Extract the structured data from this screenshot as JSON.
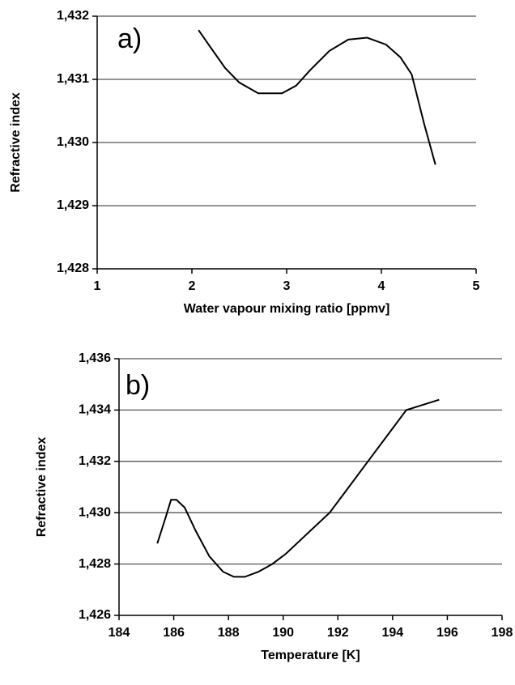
{
  "chart_data": [
    {
      "type": "line",
      "annotation": "a)",
      "xlabel": "Water vapour mixing ratio [ppmv]",
      "ylabel": "Refractive index",
      "x": [
        2.07,
        2.2,
        2.35,
        2.5,
        2.7,
        2.95,
        3.1,
        3.25,
        3.45,
        3.65,
        3.85,
        4.05,
        4.2,
        4.32,
        4.45,
        4.57
      ],
      "values": [
        1.43178,
        1.4315,
        1.43118,
        1.43095,
        1.43078,
        1.43078,
        1.4309,
        1.43115,
        1.43145,
        1.43163,
        1.43166,
        1.43155,
        1.43135,
        1.43108,
        1.4303,
        1.42965
      ],
      "color": "#000000",
      "xlim": [
        1,
        5
      ],
      "xticks": [
        1,
        2,
        3,
        4,
        5
      ],
      "ylim": [
        1.428,
        1.432
      ],
      "yticks": [
        {
          "value": 1.428,
          "label": "1,428"
        },
        {
          "value": 1.429,
          "label": "1,429"
        },
        {
          "value": 1.43,
          "label": "1,430"
        },
        {
          "value": 1.431,
          "label": "1,431"
        },
        {
          "value": 1.432,
          "label": "1,432"
        }
      ],
      "grid": true
    },
    {
      "type": "line",
      "annotation": "b)",
      "xlabel": "Temperature [K]",
      "ylabel": "Refractive index",
      "x": [
        185.4,
        185.7,
        185.9,
        186.1,
        186.4,
        186.8,
        187.3,
        187.8,
        188.2,
        188.6,
        189.1,
        189.6,
        190.1,
        190.8,
        191.7,
        192.4,
        193.1,
        193.8,
        194.5,
        195.1,
        195.7
      ],
      "values": [
        1.4288,
        1.4298,
        1.4305,
        1.4305,
        1.4302,
        1.4293,
        1.4283,
        1.4277,
        1.4275,
        1.4275,
        1.4277,
        1.428,
        1.4284,
        1.4291,
        1.43,
        1.431,
        1.432,
        1.433,
        1.434,
        1.4342,
        1.4344
      ],
      "color": "#000000",
      "xlim": [
        184,
        198
      ],
      "xticks": [
        184,
        186,
        188,
        190,
        192,
        194,
        196,
        198
      ],
      "ylim": [
        1.426,
        1.436
      ],
      "yticks": [
        {
          "value": 1.426,
          "label": "1,426"
        },
        {
          "value": 1.428,
          "label": "1,428"
        },
        {
          "value": 1.43,
          "label": "1,430"
        },
        {
          "value": 1.432,
          "label": "1,432"
        },
        {
          "value": 1.434,
          "label": "1,434"
        },
        {
          "value": 1.436,
          "label": "1,436"
        }
      ],
      "grid": true
    }
  ]
}
